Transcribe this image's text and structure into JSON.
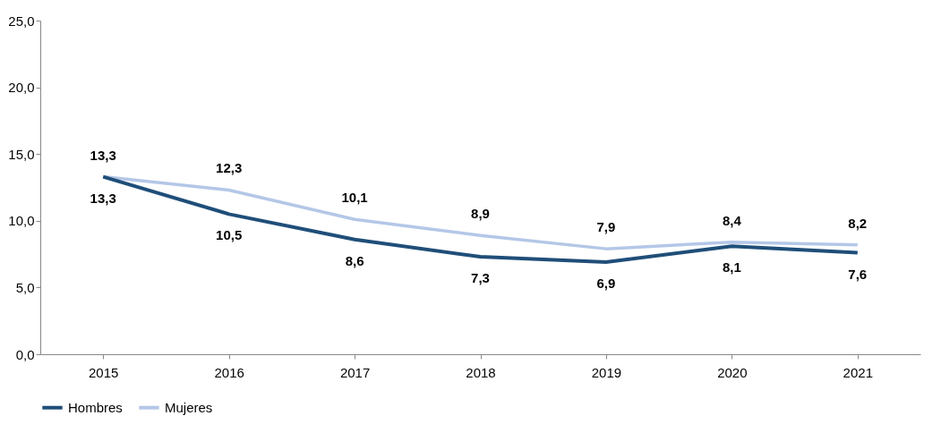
{
  "chart_data": {
    "type": "line",
    "categories": [
      "2015",
      "2016",
      "2017",
      "2018",
      "2019",
      "2020",
      "2021"
    ],
    "series": [
      {
        "name": "Hombres",
        "color": "#1f4e79",
        "values": [
          13.3,
          10.5,
          8.6,
          7.3,
          6.9,
          8.1,
          7.6
        ],
        "value_labels": [
          "13,3",
          "10,5",
          "8,6",
          "7,3",
          "6,9",
          "8,1",
          "7,6"
        ]
      },
      {
        "name": "Mujeres",
        "color": "#b4c7e7",
        "values": [
          13.3,
          12.3,
          10.1,
          8.9,
          7.9,
          8.4,
          8.2
        ],
        "value_labels": [
          "13,3",
          "12,3",
          "10,1",
          "8,9",
          "7,9",
          "8,4",
          "8,2"
        ]
      }
    ],
    "ylim": [
      0,
      25
    ],
    "yticks": [
      {
        "value": 0,
        "label": "0,0"
      },
      {
        "value": 5,
        "label": "5,0"
      },
      {
        "value": 10,
        "label": "10,0"
      },
      {
        "value": 15,
        "label": "15,0"
      },
      {
        "value": 20,
        "label": "20,0"
      },
      {
        "value": 25,
        "label": "25,0"
      }
    ],
    "grid": false,
    "legend": "bottom",
    "marker": "none",
    "line_style": "solid"
  }
}
